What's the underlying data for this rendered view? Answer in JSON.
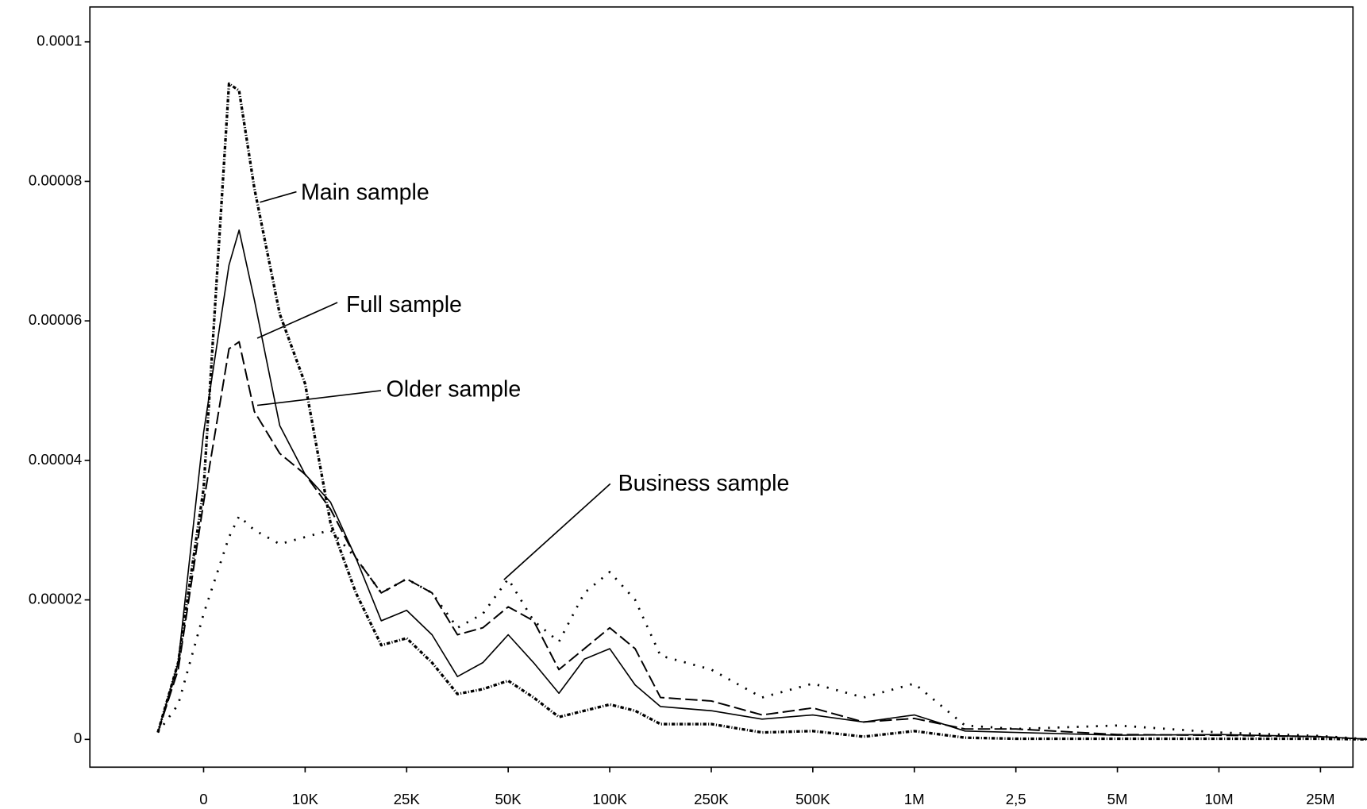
{
  "chart_data": {
    "type": "line",
    "x": [
      -0.45,
      -0.25,
      0,
      0.25,
      0.35,
      0.5,
      0.75,
      1,
      1.25,
      1.5,
      1.75,
      2,
      2.25,
      2.5,
      2.75,
      3,
      3.25,
      3.5,
      3.75,
      4,
      4.25,
      4.5,
      5,
      5.5,
      6,
      6.5,
      7,
      7.5,
      8,
      9,
      10,
      11,
      11.5
    ],
    "series": [
      {
        "name": "Main sample",
        "color": "#000000",
        "style": "dashdot",
        "values": [
          1e-06,
          1.1e-05,
          3.6e-05,
          9.4e-05,
          9.3e-05,
          7.9e-05,
          6.1e-05,
          5.1e-05,
          3.1e-05,
          2.1e-05,
          1.35e-05,
          1.45e-05,
          1.1e-05,
          6.5e-06,
          7.2e-06,
          8.4e-06,
          6e-06,
          3.2e-06,
          4.1e-06,
          5e-06,
          4.1e-06,
          2.2e-06,
          2.2e-06,
          1e-06,
          1.2e-06,
          4e-07,
          1.2e-06,
          2.5e-07,
          1e-07,
          1e-07,
          1e-07,
          1e-07,
          0
        ]
      },
      {
        "name": "Full sample",
        "color": "#000000",
        "style": "solid",
        "values": [
          1e-06,
          1.1e-05,
          4.4e-05,
          6.8e-05,
          7.3e-05,
          6.3e-05,
          4.5e-05,
          3.8e-05,
          3.4e-05,
          2.6e-05,
          1.7e-05,
          1.85e-05,
          1.5e-05,
          9e-06,
          1.1e-05,
          1.5e-05,
          1.1e-05,
          6.6e-06,
          1.15e-05,
          1.3e-05,
          7.8e-06,
          4.7e-06,
          4.1e-06,
          2.9e-06,
          3.5e-06,
          2.5e-06,
          3.5e-06,
          1.2e-06,
          1e-06,
          6e-07,
          7e-07,
          4e-07,
          0
        ]
      },
      {
        "name": "Older sample",
        "color": "#000000",
        "style": "dash",
        "values": [
          1e-06,
          1e-05,
          3.4e-05,
          5.6e-05,
          5.7e-05,
          4.7e-05,
          4.1e-05,
          3.8e-05,
          3.3e-05,
          2.6e-05,
          2.1e-05,
          2.3e-05,
          2.1e-05,
          1.5e-05,
          1.6e-05,
          1.9e-05,
          1.7e-05,
          1e-05,
          1.3e-05,
          1.6e-05,
          1.3e-05,
          6e-06,
          5.5e-06,
          3.5e-06,
          4.5e-06,
          2.5e-06,
          3e-06,
          1.5e-06,
          1.5e-06,
          7e-07,
          6e-07,
          4e-07,
          0
        ]
      },
      {
        "name": "Business sample",
        "color": "#000000",
        "style": "dot",
        "values": [
          1e-06,
          5e-06,
          1.8e-05,
          2.9e-05,
          3.2e-05,
          3e-05,
          2.8e-05,
          2.9e-05,
          3e-05,
          2.6e-05,
          2.1e-05,
          2.3e-05,
          2.1e-05,
          1.6e-05,
          1.8e-05,
          2.3e-05,
          1.7e-05,
          1.4e-05,
          2.1e-05,
          2.4e-05,
          2e-05,
          1.2e-05,
          1e-05,
          6e-06,
          8e-06,
          6e-06,
          8e-06,
          2e-06,
          1.5e-06,
          2e-06,
          1e-06,
          5e-07,
          0
        ]
      }
    ],
    "xlim": [
      -1.12,
      11.32
    ],
    "xticks": [
      0,
      {
        "value": 1,
        "label": "10K"
      },
      {
        "value": 2,
        "label": "25K"
      },
      {
        "value": 3,
        "label": "50K"
      },
      {
        "value": 4,
        "label": "100K"
      },
      {
        "value": 5,
        "label": "250K"
      },
      {
        "value": 6,
        "label": "500K"
      },
      {
        "value": 7,
        "label": "1M"
      },
      {
        "value": 8,
        "label": "2,5"
      },
      {
        "value": 9,
        "label": "5M"
      },
      {
        "value": 10,
        "label": "10M"
      },
      {
        "value": 11,
        "label": "25M"
      }
    ],
    "ylim": [
      -3.98e-06,
      0.000105
    ],
    "yticks": [
      0,
      2e-05,
      4e-05,
      6e-05,
      8e-05,
      0.0001
    ],
    "grid": false
  }
}
